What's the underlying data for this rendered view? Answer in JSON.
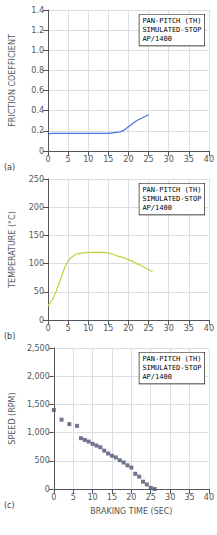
{
  "chart_data": [
    {
      "type": "line",
      "title": "(a)",
      "annotation": "PAN-PITCH (TH)\nSIMULATED-STOP\nAP/1400",
      "ylabel": "FRICTION COEFFICIENT",
      "x": [
        0,
        1,
        2,
        3,
        4,
        5,
        6,
        7,
        8,
        9,
        10,
        11,
        12,
        13,
        14,
        15,
        16,
        17,
        18,
        19,
        20,
        21,
        22,
        23,
        24,
        25
      ],
      "values": [
        0.17,
        0.175,
        0.175,
        0.175,
        0.175,
        0.175,
        0.175,
        0.175,
        0.175,
        0.175,
        0.175,
        0.175,
        0.175,
        0.175,
        0.175,
        0.175,
        0.18,
        0.185,
        0.19,
        0.21,
        0.24,
        0.27,
        0.3,
        0.32,
        0.34,
        0.36
      ],
      "xlim": [
        0,
        40
      ],
      "xticks": [
        0,
        5,
        10,
        15,
        20,
        25,
        30,
        35,
        40
      ],
      "ylim": [
        0,
        1.4
      ],
      "yticks": [
        0,
        0.2,
        0.4,
        0.6,
        0.8,
        {
          "value": 1.0,
          "label": "1.0"
        },
        1.2,
        1.4
      ],
      "grid": true
    },
    {
      "type": "line",
      "title": "(b)",
      "annotation": "PAN-PITCH (TH)\nSIMULATED-STOP\nAP/1400",
      "ylabel": "TEMPERATURE (°C)",
      "x": [
        0,
        1,
        2,
        3,
        4,
        5,
        6,
        7,
        8,
        9,
        10,
        11,
        12,
        13,
        14,
        15,
        16,
        17,
        18,
        19,
        20,
        21,
        22,
        23,
        24,
        25,
        26
      ],
      "values": [
        25,
        35,
        50,
        70,
        90,
        105,
        112,
        117,
        118,
        119,
        120,
        120,
        120,
        120,
        120,
        119,
        117,
        114,
        112,
        110,
        107,
        104,
        100,
        97,
        93,
        89,
        86
      ],
      "xlim": [
        0,
        40
      ],
      "xticks": [
        0,
        5,
        10,
        15,
        20,
        25,
        30,
        35,
        40
      ],
      "ylim": [
        0,
        250
      ],
      "yticks": [
        0,
        50,
        100,
        150,
        200,
        250
      ],
      "grid": true
    },
    {
      "type": "scatter",
      "title": "(c)",
      "marker": "square",
      "annotation": "PAN-PITCH (TH)\nSIMULATED-STOP\nAP/1400",
      "ylabel": "SPEED (RPM)",
      "xlabel": "BRAKING TIME (SEC)",
      "x": [
        0,
        2,
        4,
        6,
        7,
        8,
        9,
        10,
        11,
        12,
        13,
        14,
        15,
        16,
        17,
        18,
        19,
        20,
        21,
        22,
        23,
        24,
        25,
        26
      ],
      "values": [
        1400,
        1230,
        1150,
        1120,
        900,
        870,
        840,
        800,
        770,
        740,
        680,
        630,
        590,
        560,
        510,
        470,
        420,
        380,
        270,
        220,
        130,
        80,
        20,
        0
      ],
      "xlim": [
        0,
        40
      ],
      "xticks": [
        0,
        5,
        10,
        15,
        20,
        25,
        30,
        35,
        40
      ],
      "ylim": [
        0,
        2500
      ],
      "yticks": [
        0,
        500,
        {
          "value": 1000,
          "label": "1,000"
        },
        {
          "value": 1500,
          "label": "1,500"
        },
        {
          "value": 2000,
          "label": "2,000"
        },
        {
          "value": 2500,
          "label": "2,500"
        }
      ],
      "grid": true
    }
  ]
}
